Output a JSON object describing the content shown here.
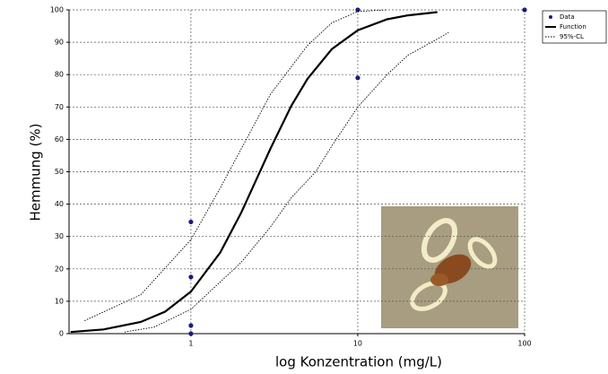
{
  "chart_data": {
    "type": "scatter",
    "x_label": "log Konzentration (mg/L)",
    "y_label": "Hemmung (%)",
    "x_log": true,
    "xlim": [
      0.186,
      100
    ],
    "xticks": [
      1,
      10,
      100
    ],
    "ylim": [
      0,
      100
    ],
    "yticks": [
      0,
      10,
      20,
      30,
      40,
      50,
      60,
      70,
      80,
      90,
      100
    ],
    "grid": true,
    "legend": "top-right",
    "series": [
      {
        "name": "Data",
        "color": "#1a1a7a",
        "mode": "markers",
        "x": [
          1,
          1,
          1,
          1,
          10,
          10,
          100
        ],
        "values": [
          34.5,
          17.5,
          2.5,
          0,
          79,
          100,
          100
        ]
      },
      {
        "name": "Function",
        "color": "#000000",
        "mode": "solid",
        "x": [
          0.19,
          0.3,
          0.5,
          0.7,
          1,
          1.5,
          2,
          3,
          4,
          5,
          7,
          10,
          15,
          20,
          30
        ],
        "values": [
          0.5,
          1.3,
          3.6,
          6.8,
          13,
          25.1,
          37.3,
          57.2,
          70.4,
          78.7,
          87.9,
          93.7,
          97.1,
          98.3,
          99.3
        ]
      },
      {
        "name": "95%-CL",
        "color": "#000000",
        "mode": "dotted",
        "x": [
          0.23,
          0.5,
          1,
          1.5,
          2,
          3,
          5,
          7,
          10,
          15
        ],
        "values": [
          4,
          12,
          29,
          45,
          57,
          74,
          89,
          96,
          99.5,
          100
        ]
      },
      {
        "color": "#000000",
        "mode": "dotted",
        "x": [
          0.4,
          0.6,
          1,
          2,
          3,
          4,
          5.6,
          7,
          10,
          15,
          20,
          30,
          35
        ],
        "values": [
          0.5,
          2,
          7.5,
          22,
          33,
          42,
          50,
          58,
          70,
          80,
          86,
          91,
          93
        ]
      }
    ]
  }
}
